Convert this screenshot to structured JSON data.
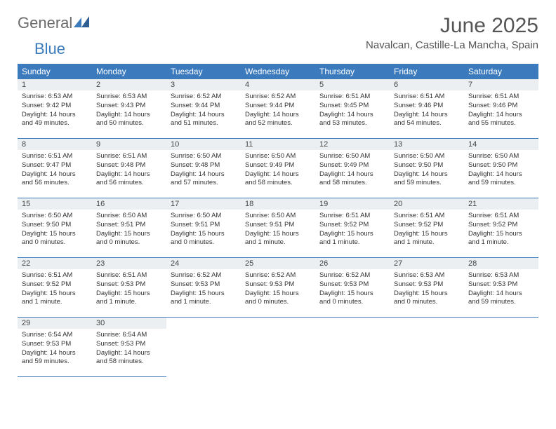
{
  "brand": {
    "part1": "General",
    "part2": "Blue"
  },
  "title": "June 2025",
  "location": "Navalcan, Castille-La Mancha, Spain",
  "colors": {
    "header_bg": "#3a7abd",
    "header_text": "#ffffff",
    "daynum_bg": "#eceff1",
    "border": "#3a7abd",
    "logo_gray": "#6b6b6b",
    "logo_blue": "#3a7abd"
  },
  "day_headers": [
    "Sunday",
    "Monday",
    "Tuesday",
    "Wednesday",
    "Thursday",
    "Friday",
    "Saturday"
  ],
  "weeks": [
    [
      {
        "n": "1",
        "sr": "6:53 AM",
        "ss": "9:42 PM",
        "dl": "14 hours and 49 minutes."
      },
      {
        "n": "2",
        "sr": "6:53 AM",
        "ss": "9:43 PM",
        "dl": "14 hours and 50 minutes."
      },
      {
        "n": "3",
        "sr": "6:52 AM",
        "ss": "9:44 PM",
        "dl": "14 hours and 51 minutes."
      },
      {
        "n": "4",
        "sr": "6:52 AM",
        "ss": "9:44 PM",
        "dl": "14 hours and 52 minutes."
      },
      {
        "n": "5",
        "sr": "6:51 AM",
        "ss": "9:45 PM",
        "dl": "14 hours and 53 minutes."
      },
      {
        "n": "6",
        "sr": "6:51 AM",
        "ss": "9:46 PM",
        "dl": "14 hours and 54 minutes."
      },
      {
        "n": "7",
        "sr": "6:51 AM",
        "ss": "9:46 PM",
        "dl": "14 hours and 55 minutes."
      }
    ],
    [
      {
        "n": "8",
        "sr": "6:51 AM",
        "ss": "9:47 PM",
        "dl": "14 hours and 56 minutes."
      },
      {
        "n": "9",
        "sr": "6:51 AM",
        "ss": "9:48 PM",
        "dl": "14 hours and 56 minutes."
      },
      {
        "n": "10",
        "sr": "6:50 AM",
        "ss": "9:48 PM",
        "dl": "14 hours and 57 minutes."
      },
      {
        "n": "11",
        "sr": "6:50 AM",
        "ss": "9:49 PM",
        "dl": "14 hours and 58 minutes."
      },
      {
        "n": "12",
        "sr": "6:50 AM",
        "ss": "9:49 PM",
        "dl": "14 hours and 58 minutes."
      },
      {
        "n": "13",
        "sr": "6:50 AM",
        "ss": "9:50 PM",
        "dl": "14 hours and 59 minutes."
      },
      {
        "n": "14",
        "sr": "6:50 AM",
        "ss": "9:50 PM",
        "dl": "14 hours and 59 minutes."
      }
    ],
    [
      {
        "n": "15",
        "sr": "6:50 AM",
        "ss": "9:50 PM",
        "dl": "15 hours and 0 minutes."
      },
      {
        "n": "16",
        "sr": "6:50 AM",
        "ss": "9:51 PM",
        "dl": "15 hours and 0 minutes."
      },
      {
        "n": "17",
        "sr": "6:50 AM",
        "ss": "9:51 PM",
        "dl": "15 hours and 0 minutes."
      },
      {
        "n": "18",
        "sr": "6:50 AM",
        "ss": "9:51 PM",
        "dl": "15 hours and 1 minute."
      },
      {
        "n": "19",
        "sr": "6:51 AM",
        "ss": "9:52 PM",
        "dl": "15 hours and 1 minute."
      },
      {
        "n": "20",
        "sr": "6:51 AM",
        "ss": "9:52 PM",
        "dl": "15 hours and 1 minute."
      },
      {
        "n": "21",
        "sr": "6:51 AM",
        "ss": "9:52 PM",
        "dl": "15 hours and 1 minute."
      }
    ],
    [
      {
        "n": "22",
        "sr": "6:51 AM",
        "ss": "9:52 PM",
        "dl": "15 hours and 1 minute."
      },
      {
        "n": "23",
        "sr": "6:51 AM",
        "ss": "9:53 PM",
        "dl": "15 hours and 1 minute."
      },
      {
        "n": "24",
        "sr": "6:52 AM",
        "ss": "9:53 PM",
        "dl": "15 hours and 1 minute."
      },
      {
        "n": "25",
        "sr": "6:52 AM",
        "ss": "9:53 PM",
        "dl": "15 hours and 0 minutes."
      },
      {
        "n": "26",
        "sr": "6:52 AM",
        "ss": "9:53 PM",
        "dl": "15 hours and 0 minutes."
      },
      {
        "n": "27",
        "sr": "6:53 AM",
        "ss": "9:53 PM",
        "dl": "15 hours and 0 minutes."
      },
      {
        "n": "28",
        "sr": "6:53 AM",
        "ss": "9:53 PM",
        "dl": "14 hours and 59 minutes."
      }
    ],
    [
      {
        "n": "29",
        "sr": "6:54 AM",
        "ss": "9:53 PM",
        "dl": "14 hours and 59 minutes."
      },
      {
        "n": "30",
        "sr": "6:54 AM",
        "ss": "9:53 PM",
        "dl": "14 hours and 58 minutes."
      },
      null,
      null,
      null,
      null,
      null
    ]
  ],
  "labels": {
    "sunrise": "Sunrise:",
    "sunset": "Sunset:",
    "daylight": "Daylight:"
  }
}
